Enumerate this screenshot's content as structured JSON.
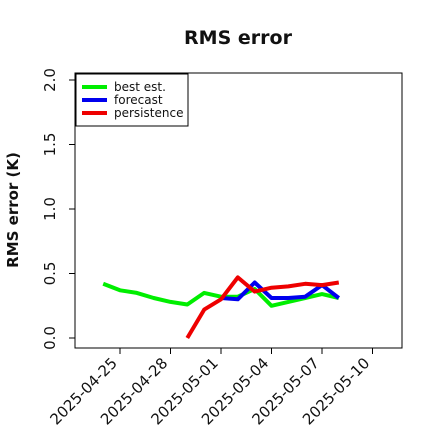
{
  "chart_data": {
    "type": "line",
    "title": "RMS error",
    "xlabel": "",
    "ylabel": "RMS error (K)",
    "ylim": [
      0.0,
      2.0
    ],
    "xlim": [
      "2025-04-22",
      "2025-05-12"
    ],
    "yticks": [
      0.0,
      0.5,
      1.0,
      1.5,
      2.0
    ],
    "y_tick_labels": [
      "0.0",
      "0.5",
      "1.0",
      "1.5",
      "2.0"
    ],
    "xticks": [
      {
        "date": "2025-04-25",
        "label": "2025-04-25",
        "color": "#000000"
      },
      {
        "date": "2025-04-28",
        "label": "2025-04-28",
        "color": "#000000"
      },
      {
        "date": "2025-05-01",
        "label": "2025-05-01",
        "color": "#228b22"
      },
      {
        "date": "2025-05-04",
        "label": "2025-05-04",
        "color": "#000000"
      },
      {
        "date": "2025-05-07",
        "label": "2025-05-07",
        "color": "#000000"
      },
      {
        "date": "2025-05-10",
        "label": "2025-05-10",
        "color": "#000000"
      }
    ],
    "grid": false,
    "legend_position": "top-left",
    "series": [
      {
        "name": "best est.",
        "color": "#00ee00",
        "points": [
          {
            "x": "2025-04-24",
            "y": 0.42
          },
          {
            "x": "2025-04-25",
            "y": 0.37
          },
          {
            "x": "2025-04-26",
            "y": 0.35
          },
          {
            "x": "2025-04-27",
            "y": 0.31
          },
          {
            "x": "2025-04-28",
            "y": 0.28
          },
          {
            "x": "2025-04-29",
            "y": 0.26
          },
          {
            "x": "2025-04-30",
            "y": 0.35
          },
          {
            "x": "2025-05-01",
            "y": 0.32
          },
          {
            "x": "2025-05-02",
            "y": 0.32
          },
          {
            "x": "2025-05-03",
            "y": 0.38
          },
          {
            "x": "2025-05-04",
            "y": 0.25
          },
          {
            "x": "2025-05-05",
            "y": 0.28
          },
          {
            "x": "2025-05-06",
            "y": 0.31
          },
          {
            "x": "2025-05-07",
            "y": 0.34
          },
          {
            "x": "2025-05-08",
            "y": 0.31
          }
        ]
      },
      {
        "name": "forecast",
        "color": "#0000ee",
        "points": [
          {
            "x": "2025-05-01",
            "y": 0.31
          },
          {
            "x": "2025-05-02",
            "y": 0.3
          },
          {
            "x": "2025-05-03",
            "y": 0.43
          },
          {
            "x": "2025-05-04",
            "y": 0.31
          },
          {
            "x": "2025-05-05",
            "y": 0.31
          },
          {
            "x": "2025-05-06",
            "y": 0.32
          },
          {
            "x": "2025-05-07",
            "y": 0.41
          },
          {
            "x": "2025-05-08",
            "y": 0.31
          }
        ]
      },
      {
        "name": "persistence",
        "color": "#ee0000",
        "points": [
          {
            "x": "2025-04-29",
            "y": 0.0
          },
          {
            "x": "2025-04-30",
            "y": 0.22
          },
          {
            "x": "2025-05-01",
            "y": 0.3
          },
          {
            "x": "2025-05-02",
            "y": 0.47
          },
          {
            "x": "2025-05-03",
            "y": 0.36
          },
          {
            "x": "2025-05-04",
            "y": 0.39
          },
          {
            "x": "2025-05-05",
            "y": 0.4
          },
          {
            "x": "2025-05-06",
            "y": 0.42
          },
          {
            "x": "2025-05-07",
            "y": 0.41
          },
          {
            "x": "2025-05-08",
            "y": 0.43
          }
        ]
      }
    ]
  }
}
